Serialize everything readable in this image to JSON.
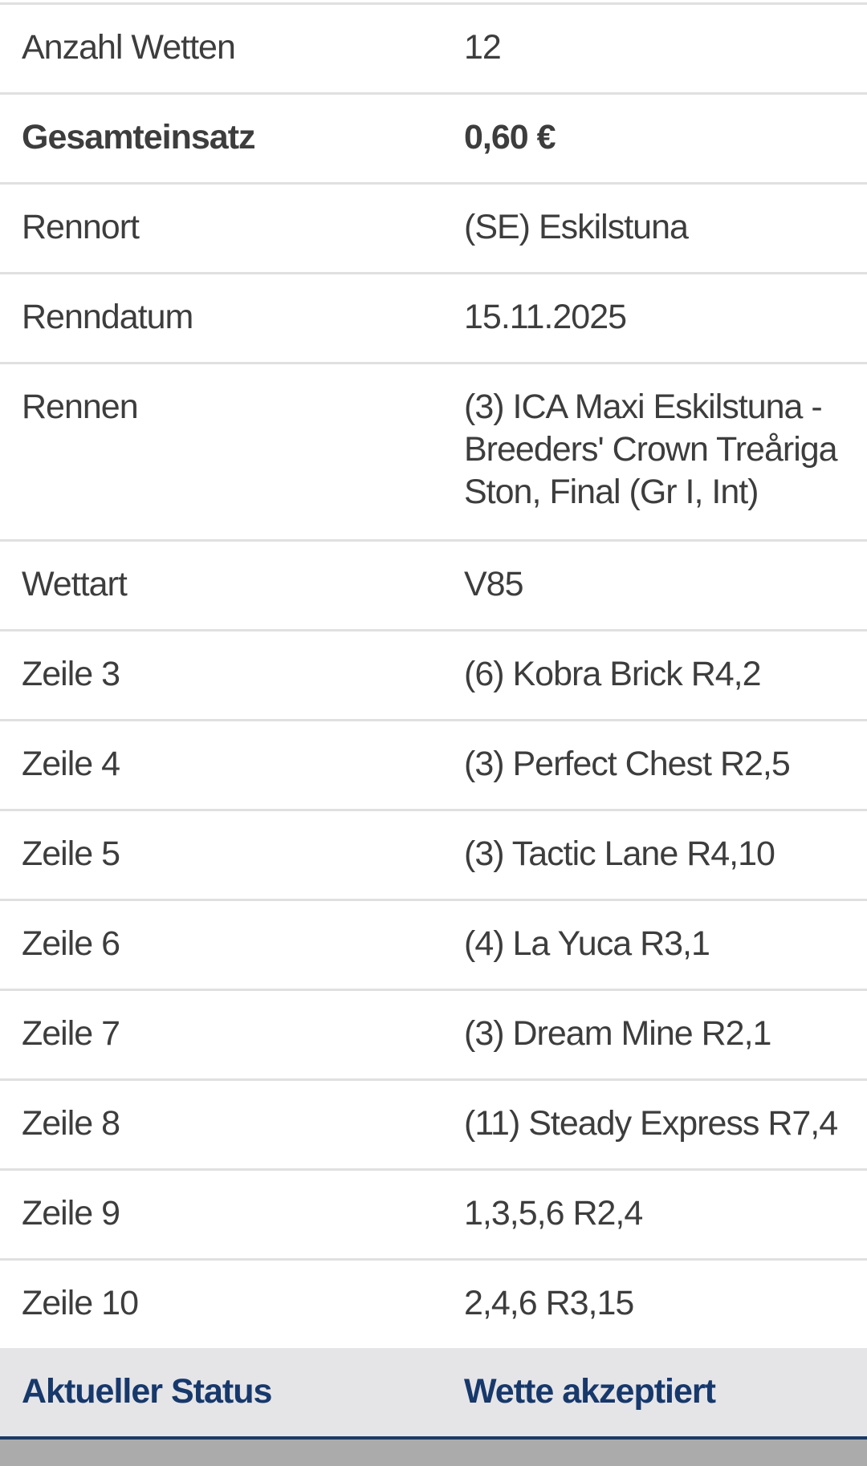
{
  "table": {
    "rows": [
      {
        "label": "Anzahl Wetten",
        "value": "12"
      },
      {
        "label": "Gesamteinsatz",
        "value": "0,60 €",
        "bold": true
      },
      {
        "label": "Rennort",
        "value": "(SE) Eskilstuna"
      },
      {
        "label": "Renndatum",
        "value": "15.11.2025"
      },
      {
        "label": "Rennen",
        "value": "(3) ICA Maxi Eskilstuna -\nBreeders' Crown Treåriga\nSton, Final (Gr I, Int)",
        "tall": true
      },
      {
        "label": "Wettart",
        "value": "V85"
      },
      {
        "label": "Zeile 3",
        "value": "(6) Kobra Brick R4,2"
      },
      {
        "label": "Zeile 4",
        "value": "(3) Perfect Chest R2,5"
      },
      {
        "label": "Zeile 5",
        "value": "(3) Tactic Lane R4,10"
      },
      {
        "label": "Zeile 6",
        "value": "(4) La Yuca R3,1"
      },
      {
        "label": "Zeile 7",
        "value": "(3) Dream Mine R2,1"
      },
      {
        "label": "Zeile 8",
        "value": "(11) Steady Express R7,4"
      },
      {
        "label": "Zeile 9",
        "value": "1,3,5,6 R2,4"
      },
      {
        "label": "Zeile 10",
        "value": "2,4,6 R3,15"
      }
    ],
    "status_row": {
      "label": "Aktueller Status",
      "value": "Wette akzeptiert"
    }
  },
  "colors": {
    "text": "#3d3d3d",
    "separator": "#e0e0e0",
    "status_background": "#e5e5e7",
    "status_text": "#17386b",
    "navy_divider": "#1c3a66",
    "footer_gray": "#ababab"
  }
}
